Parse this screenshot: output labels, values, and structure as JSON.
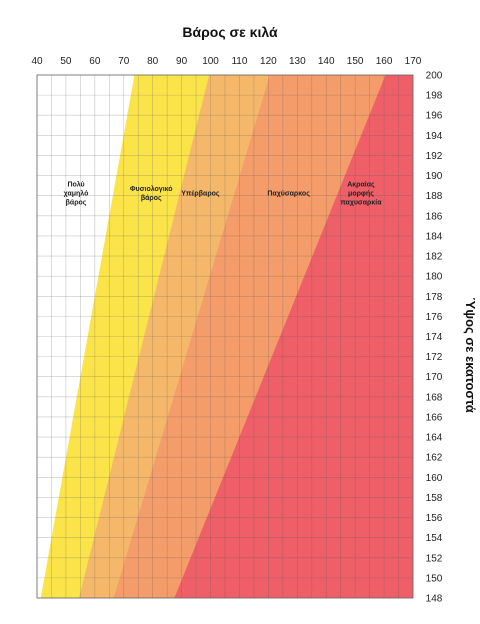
{
  "chart_data": {
    "type": "area",
    "title": "Βάρος σε κιλά",
    "xlabel": "Βάρος σε κιλά",
    "ylabel": "Ύψος σε εκατοστά",
    "xlim": [
      40,
      170
    ],
    "ylim": [
      148,
      200
    ],
    "x_ticks": [
      40,
      50,
      60,
      70,
      80,
      90,
      100,
      110,
      120,
      130,
      140,
      150,
      160,
      170
    ],
    "y_ticks": [
      148,
      150,
      152,
      154,
      156,
      158,
      160,
      162,
      164,
      166,
      168,
      170,
      172,
      174,
      176,
      178,
      180,
      182,
      184,
      186,
      188,
      190,
      192,
      194,
      196,
      198,
      200
    ],
    "grid": true,
    "x_axis_position": "top",
    "y_axis_position": "right",
    "zones": [
      {
        "label": [
          "Πολύ",
          "χαμηλό",
          "βάρος"
        ],
        "color": "#ffffff",
        "boundary": [
          [
            41.3,
            148
          ],
          [
            73.7,
            200
          ]
        ],
        "label_at": [
          53.5,
          188
        ]
      },
      {
        "label": [
          "Φυσιολογικό",
          "βάρος"
        ],
        "color": "#fbe44a",
        "boundary": [
          [
            54.5,
            148
          ],
          [
            99.5,
            200
          ]
        ],
        "label_at": [
          79.5,
          188
        ]
      },
      {
        "label": [
          "Υπέρβαρος"
        ],
        "color": "#f5b86a",
        "boundary": [
          [
            66.5,
            148
          ],
          [
            120.5,
            200
          ]
        ],
        "label_at": [
          96.5,
          188
        ]
      },
      {
        "label": [
          "Παχύσαρκος"
        ],
        "color": "#f49c6a",
        "boundary": [
          [
            87.5,
            148
          ],
          [
            160.5,
            200
          ]
        ],
        "label_at": [
          127,
          188
        ]
      },
      {
        "label": [
          "Ακραίας",
          "μορφής",
          "παχυσαρκία"
        ],
        "color": "#ef5f68",
        "boundary": null,
        "label_at": [
          152,
          188
        ]
      }
    ]
  }
}
